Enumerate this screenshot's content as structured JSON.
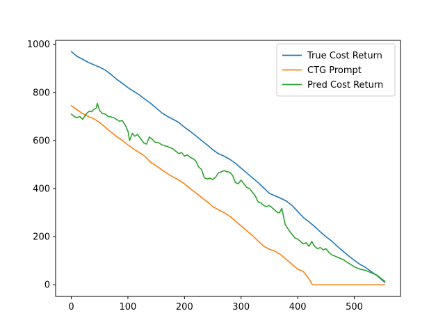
{
  "chart_data": {
    "type": "line",
    "title": "",
    "xlabel": "",
    "ylabel": "",
    "xlim": [
      -27.7,
      581.7
    ],
    "ylim": [
      -48.5,
      1016.5
    ],
    "xticks": [
      0,
      100,
      200,
      300,
      400,
      500
    ],
    "yticks": [
      0,
      200,
      400,
      600,
      800,
      1000
    ],
    "grid": false,
    "legend": "top-right",
    "series": [
      {
        "name": "True Cost Return",
        "color": "#1f77b4",
        "x": [
          0,
          10,
          20,
          30,
          40,
          50,
          60,
          70,
          80,
          90,
          100,
          110,
          120,
          130,
          140,
          150,
          160,
          170,
          180,
          190,
          200,
          210,
          220,
          230,
          240,
          250,
          260,
          270,
          280,
          290,
          300,
          310,
          320,
          330,
          340,
          350,
          360,
          370,
          380,
          390,
          400,
          410,
          420,
          430,
          440,
          450,
          460,
          470,
          480,
          490,
          500,
          510,
          520,
          530,
          540,
          554
        ],
        "values": [
          970,
          950,
          938,
          925,
          915,
          905,
          893,
          875,
          855,
          838,
          820,
          805,
          790,
          772,
          755,
          735,
          715,
          700,
          688,
          675,
          655,
          638,
          620,
          600,
          582,
          562,
          545,
          535,
          522,
          505,
          485,
          465,
          445,
          425,
          403,
          380,
          370,
          360,
          348,
          330,
          305,
          280,
          262,
          242,
          220,
          200,
          182,
          160,
          140,
          120,
          102,
          85,
          72,
          55,
          38,
          10
        ]
      },
      {
        "name": "CTG Prompt",
        "color": "#ff7f0e",
        "x": [
          0,
          10,
          20,
          30,
          40,
          50,
          60,
          70,
          80,
          90,
          100,
          110,
          120,
          130,
          140,
          150,
          160,
          170,
          180,
          190,
          200,
          210,
          220,
          230,
          240,
          250,
          260,
          270,
          280,
          290,
          300,
          310,
          320,
          330,
          340,
          350,
          360,
          370,
          380,
          390,
          400,
          410,
          420,
          426,
          440,
          460,
          480,
          500,
          520,
          540,
          554
        ],
        "values": [
          745,
          728,
          712,
          700,
          690,
          675,
          655,
          635,
          617,
          600,
          582,
          565,
          550,
          535,
          510,
          495,
          478,
          462,
          448,
          435,
          420,
          400,
          382,
          363,
          345,
          325,
          312,
          300,
          285,
          265,
          245,
          225,
          205,
          182,
          160,
          148,
          140,
          125,
          105,
          85,
          65,
          55,
          25,
          0,
          0,
          0,
          0,
          0,
          0,
          0,
          0
        ]
      },
      {
        "name": "Pred Cost Return",
        "color": "#2ca02c",
        "x": [
          0,
          5,
          10,
          15,
          20,
          25,
          28,
          32,
          36,
          40,
          44,
          46,
          50,
          55,
          60,
          65,
          70,
          75,
          80,
          85,
          90,
          95,
          100,
          103,
          108,
          112,
          117,
          122,
          128,
          133,
          138,
          143,
          148,
          155,
          160,
          165,
          170,
          175,
          180,
          185,
          190,
          195,
          200,
          205,
          210,
          215,
          220,
          225,
          230,
          235,
          240,
          245,
          250,
          255,
          260,
          265,
          270,
          275,
          280,
          285,
          290,
          295,
          300,
          305,
          310,
          315,
          320,
          325,
          330,
          335,
          340,
          345,
          350,
          355,
          360,
          365,
          368,
          372,
          378,
          385,
          390,
          395,
          400,
          405,
          410,
          415,
          420,
          425,
          430,
          435,
          440,
          445,
          450,
          455,
          460,
          465,
          470,
          475,
          480,
          490,
          500,
          510,
          520,
          530,
          540,
          548,
          554
        ],
        "values": [
          710,
          700,
          695,
          700,
          688,
          705,
          715,
          722,
          720,
          730,
          735,
          755,
          725,
          712,
          710,
          700,
          698,
          695,
          688,
          680,
          683,
          665,
          640,
          600,
          630,
          618,
          625,
          610,
          590,
          585,
          615,
          605,
          593,
          590,
          582,
          578,
          575,
          570,
          565,
          555,
          545,
          550,
          535,
          540,
          530,
          525,
          515,
          490,
          480,
          445,
          440,
          443,
          438,
          448,
          465,
          470,
          475,
          470,
          468,
          455,
          425,
          420,
          435,
          420,
          405,
          400,
          385,
          370,
          345,
          340,
          330,
          325,
          330,
          320,
          310,
          300,
          300,
          318,
          250,
          225,
          210,
          195,
          190,
          180,
          170,
          175,
          160,
          180,
          160,
          150,
          155,
          145,
          150,
          135,
          125,
          120,
          115,
          110,
          105,
          90,
          75,
          65,
          60,
          50,
          40,
          25,
          15
        ]
      }
    ]
  }
}
